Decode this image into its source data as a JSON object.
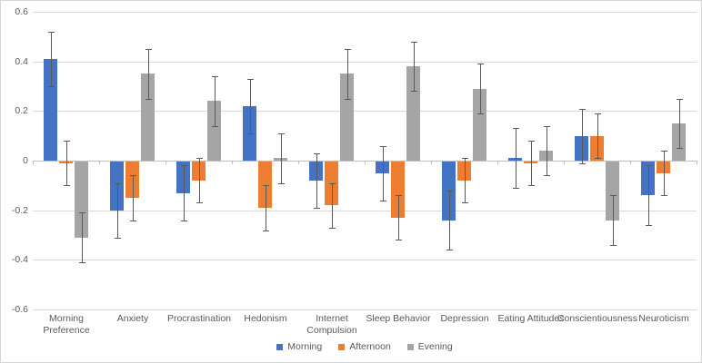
{
  "chart_data": {
    "type": "bar",
    "title": "",
    "xlabel": "",
    "ylabel": "",
    "categories": [
      "Morning Preference",
      "Anxiety",
      "Procrastination",
      "Hedonism",
      "Internet Compulsion",
      "Sleep Behavior",
      "Depression",
      "Eating Attitudes",
      "Conscientiousness",
      "Neuroticism"
    ],
    "category_labels_display": [
      "Morning\nPreference",
      "Anxiety",
      "Procrastination",
      "Hedonism",
      "Internet\nCompulsion",
      "Sleep Behavior",
      "Depression",
      "Eating Attitudes",
      "Conscientiousness",
      "Neuroticism"
    ],
    "series": [
      {
        "name": "Morning",
        "color": "#4472C4",
        "values": [
          0.41,
          -0.2,
          -0.13,
          0.22,
          -0.08,
          -0.05,
          -0.24,
          0.01,
          0.1,
          -0.14
        ],
        "errors": [
          0.11,
          0.11,
          0.11,
          0.11,
          0.11,
          0.11,
          0.12,
          0.12,
          0.11,
          0.12
        ]
      },
      {
        "name": "Afternoon",
        "color": "#ED7D31",
        "values": [
          -0.01,
          -0.15,
          -0.08,
          -0.19,
          -0.18,
          -0.23,
          -0.08,
          -0.01,
          0.1,
          -0.05
        ],
        "errors": [
          0.09,
          0.09,
          0.09,
          0.09,
          0.09,
          0.09,
          0.09,
          0.09,
          0.09,
          0.09
        ]
      },
      {
        "name": "Evening",
        "color": "#A5A5A5",
        "values": [
          -0.31,
          0.35,
          0.24,
          0.01,
          0.35,
          0.38,
          0.29,
          0.04,
          -0.24,
          0.15
        ],
        "errors": [
          0.1,
          0.1,
          0.1,
          0.1,
          0.1,
          0.1,
          0.1,
          0.1,
          0.1,
          0.1
        ]
      }
    ],
    "ylim": [
      -0.6,
      0.6
    ],
    "yticks": [
      0.6,
      0.4,
      0.2,
      0,
      -0.2,
      -0.4,
      -0.6
    ],
    "ytick_labels": [
      "0.6",
      "0.4",
      "0.2",
      "0",
      "-0.2",
      "-0.4",
      "-0.6"
    ],
    "grid": true,
    "legend_position": "bottom",
    "error_bars": true,
    "colors": {
      "gridline": "#D9D9D9",
      "axis_line": "#BFBFBF",
      "error_bar": "#595959",
      "axis_text": "#595959",
      "background": "#FFFFFF"
    }
  }
}
